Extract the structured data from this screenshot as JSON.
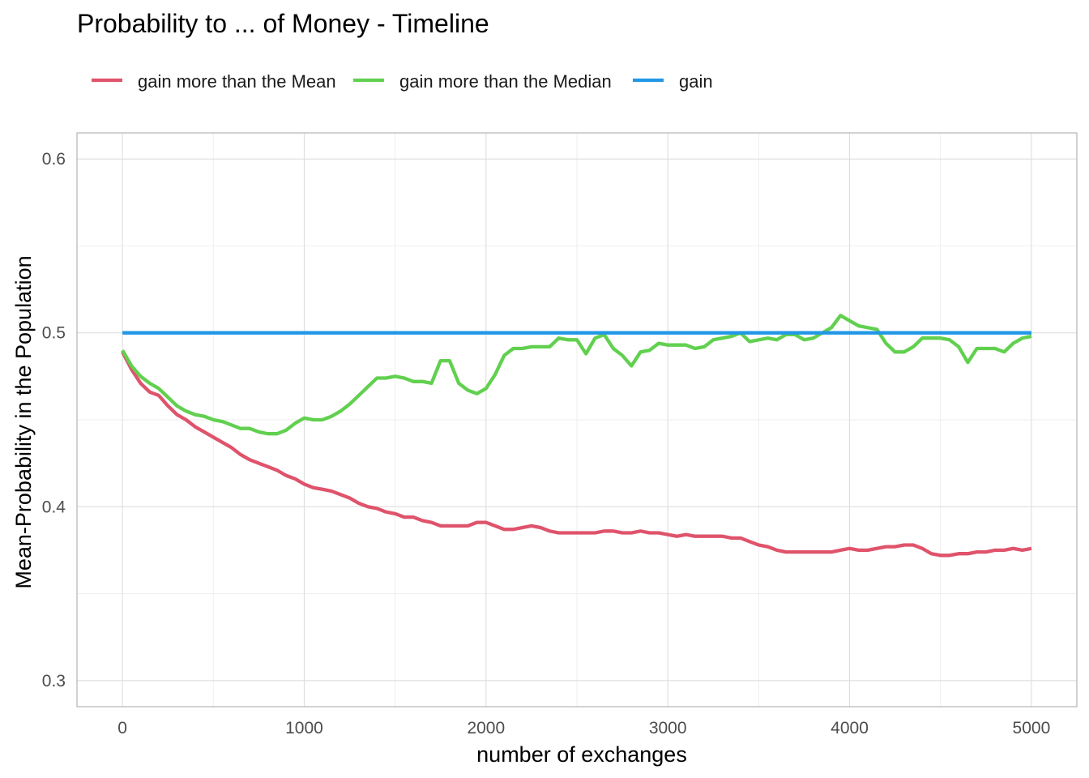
{
  "chart_data": {
    "type": "line",
    "title": "Probability to ... of Money - Timeline",
    "xlabel": "number of exchanges",
    "ylabel": "Mean-Probability in the Population",
    "xlim": [
      -250,
      5250
    ],
    "ylim": [
      0.285,
      0.615
    ],
    "x_ticks": [
      0,
      1000,
      2000,
      3000,
      4000,
      5000
    ],
    "x_tick_labels": [
      "0",
      "1000",
      "2000",
      "3000",
      "4000",
      "5000"
    ],
    "y_ticks": [
      0.3,
      0.4,
      0.5,
      0.6
    ],
    "y_tick_labels": [
      "0.3",
      "0.4",
      "0.5",
      "0.6"
    ],
    "grid": true,
    "legend_position": "top-left",
    "series": [
      {
        "name": "gain more than the Mean",
        "color": "#DF536B",
        "x": [
          0,
          50,
          100,
          150,
          200,
          250,
          300,
          350,
          400,
          450,
          500,
          550,
          600,
          650,
          700,
          750,
          800,
          850,
          900,
          950,
          1000,
          1050,
          1100,
          1150,
          1200,
          1250,
          1300,
          1350,
          1400,
          1450,
          1500,
          1550,
          1600,
          1650,
          1700,
          1750,
          1800,
          1850,
          1900,
          1950,
          2000,
          2050,
          2100,
          2150,
          2200,
          2250,
          2300,
          2350,
          2400,
          2450,
          2500,
          2550,
          2600,
          2650,
          2700,
          2750,
          2800,
          2850,
          2900,
          2950,
          3000,
          3050,
          3100,
          3150,
          3200,
          3250,
          3300,
          3350,
          3400,
          3450,
          3500,
          3550,
          3600,
          3650,
          3700,
          3750,
          3800,
          3850,
          3900,
          3950,
          4000,
          4050,
          4100,
          4150,
          4200,
          4250,
          4300,
          4350,
          4400,
          4450,
          4500,
          4550,
          4600,
          4650,
          4700,
          4750,
          4800,
          4850,
          4900,
          4950,
          5000
        ],
        "y": [
          0.489,
          0.479,
          0.471,
          0.466,
          0.464,
          0.458,
          0.453,
          0.45,
          0.446,
          0.443,
          0.44,
          0.437,
          0.434,
          0.43,
          0.427,
          0.425,
          0.423,
          0.421,
          0.418,
          0.416,
          0.413,
          0.411,
          0.41,
          0.409,
          0.407,
          0.405,
          0.402,
          0.4,
          0.399,
          0.397,
          0.396,
          0.394,
          0.394,
          0.392,
          0.391,
          0.389,
          0.389,
          0.389,
          0.389,
          0.391,
          0.391,
          0.389,
          0.387,
          0.387,
          0.388,
          0.389,
          0.388,
          0.386,
          0.385,
          0.385,
          0.385,
          0.385,
          0.385,
          0.386,
          0.386,
          0.385,
          0.385,
          0.386,
          0.385,
          0.385,
          0.384,
          0.383,
          0.384,
          0.383,
          0.383,
          0.383,
          0.383,
          0.382,
          0.382,
          0.38,
          0.378,
          0.377,
          0.375,
          0.374,
          0.374,
          0.374,
          0.374,
          0.374,
          0.374,
          0.375,
          0.376,
          0.375,
          0.375,
          0.376,
          0.377,
          0.377,
          0.378,
          0.378,
          0.376,
          0.373,
          0.372,
          0.372,
          0.373,
          0.373,
          0.374,
          0.374,
          0.375,
          0.375,
          0.376,
          0.375,
          0.376
        ]
      },
      {
        "name": "gain more than the Median",
        "color": "#61D04F",
        "x": [
          0,
          50,
          100,
          150,
          200,
          250,
          300,
          350,
          400,
          450,
          500,
          550,
          600,
          650,
          700,
          750,
          800,
          850,
          900,
          950,
          1000,
          1050,
          1100,
          1150,
          1200,
          1250,
          1300,
          1350,
          1400,
          1450,
          1500,
          1550,
          1600,
          1650,
          1700,
          1750,
          1800,
          1850,
          1900,
          1950,
          2000,
          2050,
          2100,
          2150,
          2200,
          2250,
          2300,
          2350,
          2400,
          2450,
          2500,
          2550,
          2600,
          2650,
          2700,
          2750,
          2800,
          2850,
          2900,
          2950,
          3000,
          3050,
          3100,
          3150,
          3200,
          3250,
          3300,
          3350,
          3400,
          3450,
          3500,
          3550,
          3600,
          3650,
          3700,
          3750,
          3800,
          3850,
          3900,
          3950,
          4000,
          4050,
          4100,
          4150,
          4200,
          4250,
          4300,
          4350,
          4400,
          4450,
          4500,
          4550,
          4600,
          4650,
          4700,
          4750,
          4800,
          4850,
          4900,
          4950,
          5000
        ],
        "y": [
          0.49,
          0.481,
          0.475,
          0.471,
          0.468,
          0.463,
          0.458,
          0.455,
          0.453,
          0.452,
          0.45,
          0.449,
          0.447,
          0.445,
          0.445,
          0.443,
          0.442,
          0.442,
          0.444,
          0.448,
          0.451,
          0.45,
          0.45,
          0.452,
          0.455,
          0.459,
          0.464,
          0.469,
          0.474,
          0.474,
          0.475,
          0.474,
          0.472,
          0.472,
          0.471,
          0.484,
          0.484,
          0.471,
          0.467,
          0.465,
          0.468,
          0.476,
          0.487,
          0.491,
          0.491,
          0.492,
          0.492,
          0.492,
          0.497,
          0.496,
          0.496,
          0.488,
          0.497,
          0.499,
          0.491,
          0.487,
          0.481,
          0.489,
          0.49,
          0.494,
          0.493,
          0.493,
          0.493,
          0.491,
          0.492,
          0.496,
          0.497,
          0.498,
          0.5,
          0.495,
          0.496,
          0.497,
          0.496,
          0.499,
          0.499,
          0.496,
          0.497,
          0.5,
          0.503,
          0.51,
          0.507,
          0.504,
          0.503,
          0.502,
          0.494,
          0.489,
          0.489,
          0.492,
          0.497,
          0.497,
          0.497,
          0.496,
          0.492,
          0.483,
          0.491,
          0.491,
          0.491,
          0.489,
          0.494,
          0.497,
          0.498
        ]
      },
      {
        "name": "gain",
        "color": "#2297E6",
        "x": [
          0,
          5000
        ],
        "y": [
          0.5,
          0.5
        ]
      }
    ]
  }
}
